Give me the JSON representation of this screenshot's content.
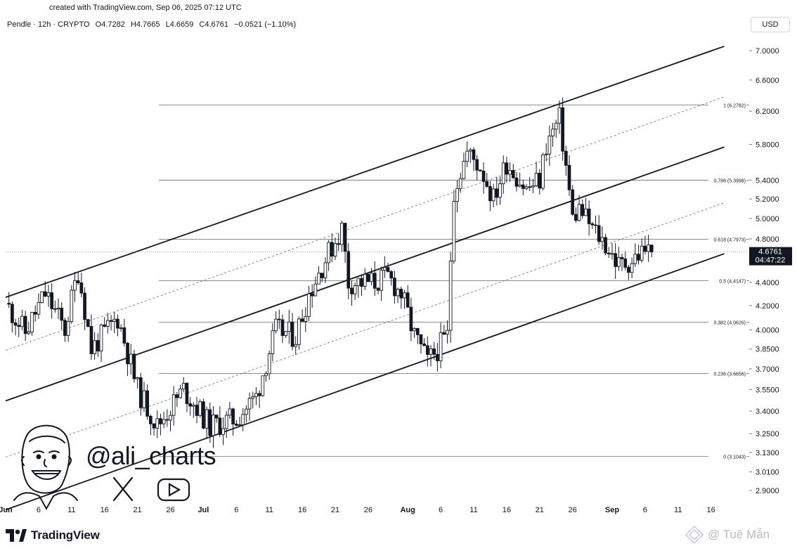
{
  "credit_line": "created with TradingView.com, Sep 06, 2025 07:12 UTC",
  "header": {
    "symbol": "Pendle · 12h · CRYPTO",
    "open": "O4.7282",
    "high": "H4.7665",
    "low": "L4.6659",
    "close": "C4.6761",
    "change": "−0.0521 (−1.10%)"
  },
  "currency_label": "USD",
  "last_price": {
    "value": "4.6761",
    "countdown": "04:47:22"
  },
  "brand": {
    "name": "TradingView"
  },
  "watermark": {
    "handle": "@ali_charts",
    "credit": "@ Tuệ Mẫn"
  },
  "icons": [
    "avatar-illustration",
    "x-logo-icon",
    "youtube-icon",
    "tradingview-logo-icon",
    "diamond-icon"
  ],
  "colors": {
    "line": "#131722",
    "fib": "#787b86",
    "last_price_bg": "#131722"
  },
  "chart_data": {
    "type": "candlestick",
    "title": "",
    "y_ticks": [
      "7.0000",
      "6.6000",
      "6.2000",
      "5.8000",
      "5.4000",
      "5.2000",
      "5.0000",
      "4.8000",
      "4.4000",
      "4.2000",
      "4.0000",
      "3.8500",
      "3.7000",
      "3.5500",
      "3.4000",
      "3.2500",
      "3.1300",
      "3.0100",
      "2.9000"
    ],
    "x_ticks": [
      {
        "day": 0,
        "label": "Jun"
      },
      {
        "day": 5,
        "label": "6"
      },
      {
        "day": 10,
        "label": "11"
      },
      {
        "day": 15,
        "label": "16"
      },
      {
        "day": 20,
        "label": "21"
      },
      {
        "day": 25,
        "label": "26"
      },
      {
        "day": 30,
        "label": "Jul"
      },
      {
        "day": 35,
        "label": "6"
      },
      {
        "day": 40,
        "label": "11"
      },
      {
        "day": 45,
        "label": "16"
      },
      {
        "day": 50,
        "label": "21"
      },
      {
        "day": 55,
        "label": "26"
      },
      {
        "day": 61,
        "label": "Aug"
      },
      {
        "day": 66,
        "label": "6"
      },
      {
        "day": 71,
        "label": "11"
      },
      {
        "day": 76,
        "label": "16"
      },
      {
        "day": 81,
        "label": "21"
      },
      {
        "day": 86,
        "label": "26"
      },
      {
        "day": 92,
        "label": "Sep"
      },
      {
        "day": 97,
        "label": "6"
      },
      {
        "day": 102,
        "label": "11"
      },
      {
        "day": 107,
        "label": "16"
      }
    ],
    "y_scale": "log",
    "fib_levels": [
      {
        "ratio": "1",
        "value": 6.2782,
        "label": "1 (6.2782)"
      },
      {
        "ratio": "0.786",
        "value": 5.3998,
        "label": "0.786 (5.3998)"
      },
      {
        "ratio": "0.618",
        "value": 4.7973,
        "label": "0.618 (4.7973)"
      },
      {
        "ratio": "0.5",
        "value": 4.4147,
        "label": "0.5 (4.4147)"
      },
      {
        "ratio": "0.382",
        "value": 4.0626,
        "label": "0.382 (4.0626)"
      },
      {
        "ratio": "0.236",
        "value": 3.6656,
        "label": "0.236 (3.6656)"
      },
      {
        "ratio": "0",
        "value": 3.1043,
        "label": "0 (3.1043)"
      }
    ],
    "channels": [
      {
        "style": "solid",
        "points": [
          [
            0,
            4.27
          ],
          [
            109,
            7.06
          ]
        ]
      },
      {
        "style": "solid",
        "points": [
          [
            0,
            3.47
          ],
          [
            109,
            5.77
          ]
        ]
      },
      {
        "style": "solid",
        "points": [
          [
            0,
            2.79
          ],
          [
            109,
            4.66
          ]
        ]
      },
      {
        "style": "dashed",
        "points": [
          [
            0,
            3.84
          ],
          [
            109,
            6.38
          ]
        ]
      },
      {
        "style": "dashed",
        "points": [
          [
            0,
            3.1
          ],
          [
            109,
            5.16
          ]
        ]
      }
    ],
    "last_price": 4.6761,
    "close_path": [
      [
        0,
        4.22
      ],
      [
        3,
        3.98
      ],
      [
        6,
        4.3
      ],
      [
        9,
        4.0
      ],
      [
        11,
        4.5
      ],
      [
        13,
        3.85
      ],
      [
        17,
        4.1
      ],
      [
        20,
        3.55
      ],
      [
        23,
        3.3
      ],
      [
        27,
        3.55
      ],
      [
        31,
        3.3
      ],
      [
        35,
        3.35
      ],
      [
        38,
        3.5
      ],
      [
        41,
        4.0
      ],
      [
        44,
        3.95
      ],
      [
        46,
        4.3
      ],
      [
        48,
        4.55
      ],
      [
        51,
        4.9
      ],
      [
        52,
        4.4
      ],
      [
        56,
        4.4
      ],
      [
        58,
        4.45
      ],
      [
        60,
        4.3
      ],
      [
        62,
        3.95
      ],
      [
        64,
        3.75
      ],
      [
        67,
        3.95
      ],
      [
        68,
        5.3
      ],
      [
        70,
        5.7
      ],
      [
        72,
        5.55
      ],
      [
        74,
        5.2
      ],
      [
        76,
        5.6
      ],
      [
        79,
        5.3
      ],
      [
        81,
        5.4
      ],
      [
        82,
        5.8
      ],
      [
        84,
        6.1
      ],
      [
        86,
        5.0
      ],
      [
        87,
        5.1
      ],
      [
        89,
        4.9
      ],
      [
        91,
        4.75
      ],
      [
        93,
        4.55
      ],
      [
        95,
        4.6
      ],
      [
        97,
        4.7
      ],
      [
        98,
        4.6761
      ]
    ]
  }
}
